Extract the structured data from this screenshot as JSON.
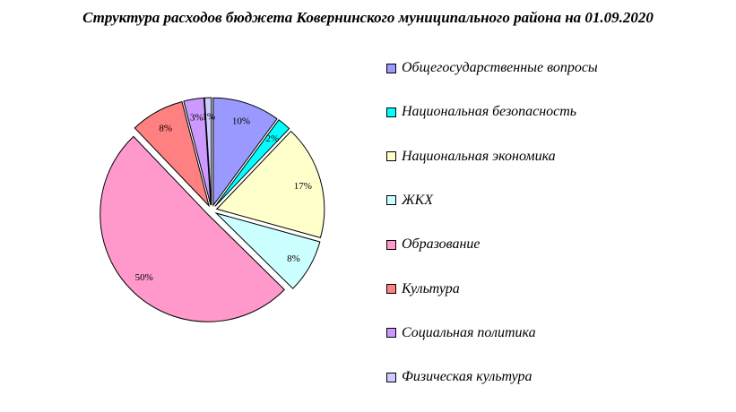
{
  "chart_data": {
    "type": "pie",
    "title": "Структура расходов бюджета Ковернинского муниципального района на 01.09.2020",
    "categories": [
      "Общегосударственные вопросы",
      "Национальная безопасность",
      "Национальная экономика",
      "ЖКХ",
      "Образование",
      "Культура",
      "Социальная политика",
      "Физическая культура"
    ],
    "values": [
      10,
      2,
      17,
      8,
      50,
      8,
      3,
      1
    ],
    "data_labels": [
      "10%",
      "2%",
      "17%",
      "8%",
      "50%",
      "8%",
      "3%",
      "1%"
    ],
    "colors": [
      "#9999FF",
      "#00FFFF",
      "#FFFFCC",
      "#CCFFFF",
      "#FF99CC",
      "#FF8080",
      "#CC99FF",
      "#CCCCFF"
    ],
    "exploded": true,
    "legend_position": "right"
  }
}
